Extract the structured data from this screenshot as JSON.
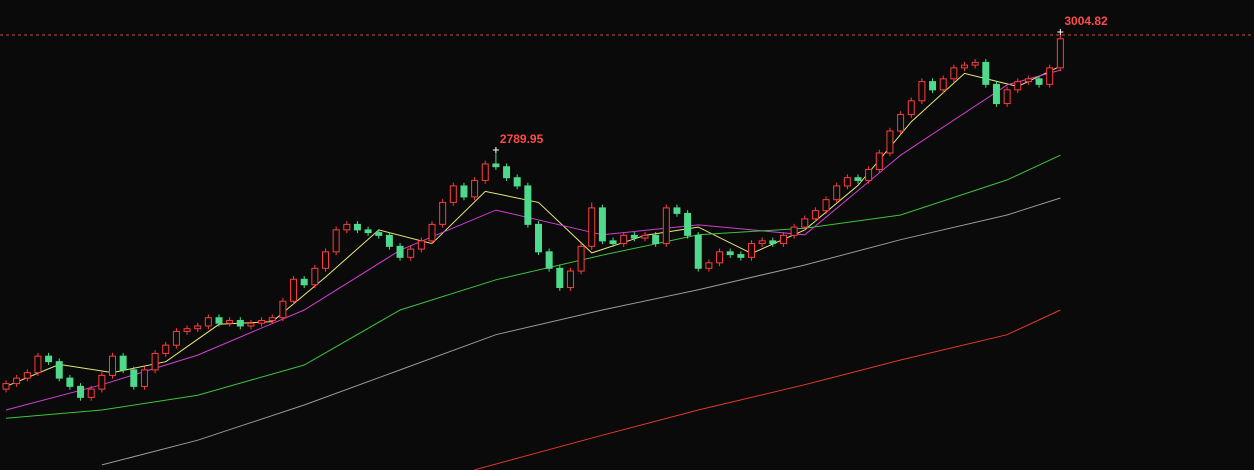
{
  "chart_data": {
    "type": "candlestick",
    "ylim": [
      2212.7,
      3068.6
    ],
    "up_color": "#ff3c3c",
    "down_color": "#4fd98c",
    "ohlc": [
      [
        2360,
        2376,
        2354,
        2370
      ],
      [
        2370,
        2386,
        2364,
        2380
      ],
      [
        2380,
        2396,
        2374,
        2390
      ],
      [
        2390,
        2426,
        2384,
        2420
      ],
      [
        2420,
        2426,
        2404,
        2410
      ],
      [
        2410,
        2416,
        2374,
        2380
      ],
      [
        2380,
        2386,
        2359,
        2365
      ],
      [
        2365,
        2371,
        2339,
        2345
      ],
      [
        2345,
        2366,
        2339,
        2360
      ],
      [
        2360,
        2391,
        2354,
        2385
      ],
      [
        2385,
        2426,
        2379,
        2420
      ],
      [
        2420,
        2426,
        2389,
        2395
      ],
      [
        2395,
        2401,
        2359,
        2365
      ],
      [
        2365,
        2401,
        2359,
        2395
      ],
      [
        2395,
        2431,
        2389,
        2425
      ],
      [
        2425,
        2446,
        2419,
        2440
      ],
      [
        2440,
        2471,
        2434,
        2465
      ],
      [
        2465,
        2476,
        2459,
        2470
      ],
      [
        2470,
        2481,
        2464,
        2475
      ],
      [
        2475,
        2496,
        2469,
        2490
      ],
      [
        2490,
        2496,
        2474,
        2480
      ],
      [
        2480,
        2491,
        2474,
        2485
      ],
      [
        2485,
        2491,
        2469,
        2475
      ],
      [
        2475,
        2486,
        2469,
        2480
      ],
      [
        2480,
        2491,
        2474,
        2485
      ],
      [
        2485,
        2496,
        2479,
        2490
      ],
      [
        2490,
        2526,
        2484,
        2520
      ],
      [
        2520,
        2566,
        2514,
        2560
      ],
      [
        2560,
        2566,
        2544,
        2550
      ],
      [
        2550,
        2586,
        2544,
        2580
      ],
      [
        2580,
        2616,
        2574,
        2610
      ],
      [
        2610,
        2656,
        2604,
        2650
      ],
      [
        2650,
        2666,
        2644,
        2660
      ],
      [
        2660,
        2666,
        2644,
        2650
      ],
      [
        2650,
        2656,
        2639,
        2645
      ],
      [
        2645,
        2651,
        2634,
        2640
      ],
      [
        2640,
        2646,
        2614,
        2620
      ],
      [
        2620,
        2626,
        2594,
        2600
      ],
      [
        2600,
        2621,
        2594,
        2615
      ],
      [
        2615,
        2636,
        2609,
        2630
      ],
      [
        2630,
        2666,
        2624,
        2660
      ],
      [
        2660,
        2706,
        2654,
        2700
      ],
      [
        2700,
        2736,
        2694,
        2730
      ],
      [
        2730,
        2736,
        2704,
        2710
      ],
      [
        2710,
        2746,
        2704,
        2740
      ],
      [
        2740,
        2776,
        2734,
        2770
      ],
      [
        2770,
        2789.95,
        2759,
        2765
      ],
      [
        2765,
        2771,
        2739,
        2745
      ],
      [
        2745,
        2751,
        2724,
        2730
      ],
      [
        2730,
        2736,
        2654,
        2660
      ],
      [
        2660,
        2666,
        2604,
        2610
      ],
      [
        2610,
        2616,
        2574,
        2580
      ],
      [
        2580,
        2586,
        2539,
        2545
      ],
      [
        2545,
        2581,
        2539,
        2575
      ],
      [
        2575,
        2626,
        2569,
        2620
      ],
      [
        2620,
        2700,
        2614,
        2690
      ],
      [
        2690,
        2696,
        2624,
        2630
      ],
      [
        2630,
        2636,
        2619,
        2625
      ],
      [
        2625,
        2646,
        2619,
        2640
      ],
      [
        2640,
        2646,
        2629,
        2635
      ],
      [
        2635,
        2646,
        2629,
        2640
      ],
      [
        2640,
        2646,
        2619,
        2625
      ],
      [
        2625,
        2696,
        2619,
        2690
      ],
      [
        2690,
        2696,
        2674,
        2680
      ],
      [
        2680,
        2686,
        2634,
        2640
      ],
      [
        2640,
        2646,
        2574,
        2580
      ],
      [
        2580,
        2596,
        2574,
        2590
      ],
      [
        2590,
        2616,
        2584,
        2610
      ],
      [
        2610,
        2616,
        2599,
        2605
      ],
      [
        2605,
        2611,
        2594,
        2600
      ],
      [
        2600,
        2631,
        2594,
        2625
      ],
      [
        2625,
        2636,
        2619,
        2630
      ],
      [
        2630,
        2636,
        2619,
        2625
      ],
      [
        2625,
        2646,
        2619,
        2640
      ],
      [
        2640,
        2661,
        2634,
        2655
      ],
      [
        2655,
        2676,
        2649,
        2670
      ],
      [
        2670,
        2691,
        2664,
        2685
      ],
      [
        2685,
        2711,
        2679,
        2705
      ],
      [
        2705,
        2736,
        2699,
        2730
      ],
      [
        2730,
        2751,
        2724,
        2745
      ],
      [
        2745,
        2751,
        2734,
        2740
      ],
      [
        2740,
        2766,
        2734,
        2760
      ],
      [
        2760,
        2796,
        2754,
        2790
      ],
      [
        2790,
        2836,
        2784,
        2830
      ],
      [
        2830,
        2866,
        2824,
        2860
      ],
      [
        2860,
        2891,
        2854,
        2885
      ],
      [
        2885,
        2926,
        2879,
        2920
      ],
      [
        2920,
        2926,
        2899,
        2905
      ],
      [
        2905,
        2931,
        2899,
        2925
      ],
      [
        2925,
        2951,
        2919,
        2945
      ],
      [
        2945,
        2956,
        2939,
        2950
      ],
      [
        2950,
        2961,
        2944,
        2955
      ],
      [
        2955,
        2961,
        2909,
        2915
      ],
      [
        2915,
        2921,
        2874,
        2880
      ],
      [
        2880,
        2911,
        2874,
        2905
      ],
      [
        2905,
        2926,
        2899,
        2920
      ],
      [
        2920,
        2931,
        2914,
        2925
      ],
      [
        2925,
        2931,
        2909,
        2915
      ],
      [
        2915,
        2951,
        2909,
        2945
      ],
      [
        2945,
        3004.82,
        2939,
        2998
      ]
    ],
    "lines": [
      {
        "color": "#e8e87a",
        "x": [
          0,
          5,
          10,
          15,
          20,
          25,
          30,
          35,
          40,
          45,
          50,
          55,
          60,
          65,
          70,
          75,
          80,
          85,
          90,
          95,
          99
        ],
        "values": [
          2365,
          2405,
          2390,
          2410,
          2478,
          2483,
          2564,
          2650,
          2625,
          2720,
          2700,
          2608,
          2640,
          2655,
          2607,
          2650,
          2731,
          2847,
          2935,
          2911,
          2948
        ]
      },
      {
        "color": "#d040d0",
        "x": [
          0,
          9,
          18,
          28,
          37,
          46,
          56,
          65,
          75,
          84,
          94,
          99
        ],
        "values": [
          2322,
          2368,
          2422,
          2504,
          2613,
          2686,
          2641,
          2659,
          2641,
          2786,
          2914,
          2941
        ]
      },
      {
        "color": "#3cc43c",
        "x": [
          0,
          9,
          18,
          28,
          37,
          46,
          56,
          65,
          75,
          84,
          94,
          99
        ],
        "values": [
          2307,
          2322,
          2349,
          2404,
          2504,
          2559,
          2604,
          2641,
          2653,
          2677,
          2741,
          2786
        ]
      },
      {
        "color": "#9a9a9a",
        "x": [
          9,
          18,
          28,
          37,
          46,
          56,
          65,
          75,
          84,
          94,
          99
        ],
        "values": [
          2222,
          2267,
          2331,
          2395,
          2459,
          2504,
          2541,
          2586,
          2632,
          2677,
          2708
        ]
      },
      {
        "color": "#e03a2a",
        "x": [
          44,
          56,
          65,
          75,
          84,
          94,
          99
        ],
        "values": [
          2213,
          2276,
          2322,
          2368,
          2413,
          2459,
          2504
        ]
      }
    ],
    "annotations": [
      {
        "x": 46,
        "value": 2789.95,
        "line": false
      },
      {
        "x": 99,
        "value": 3004.82,
        "line": true
      }
    ]
  }
}
